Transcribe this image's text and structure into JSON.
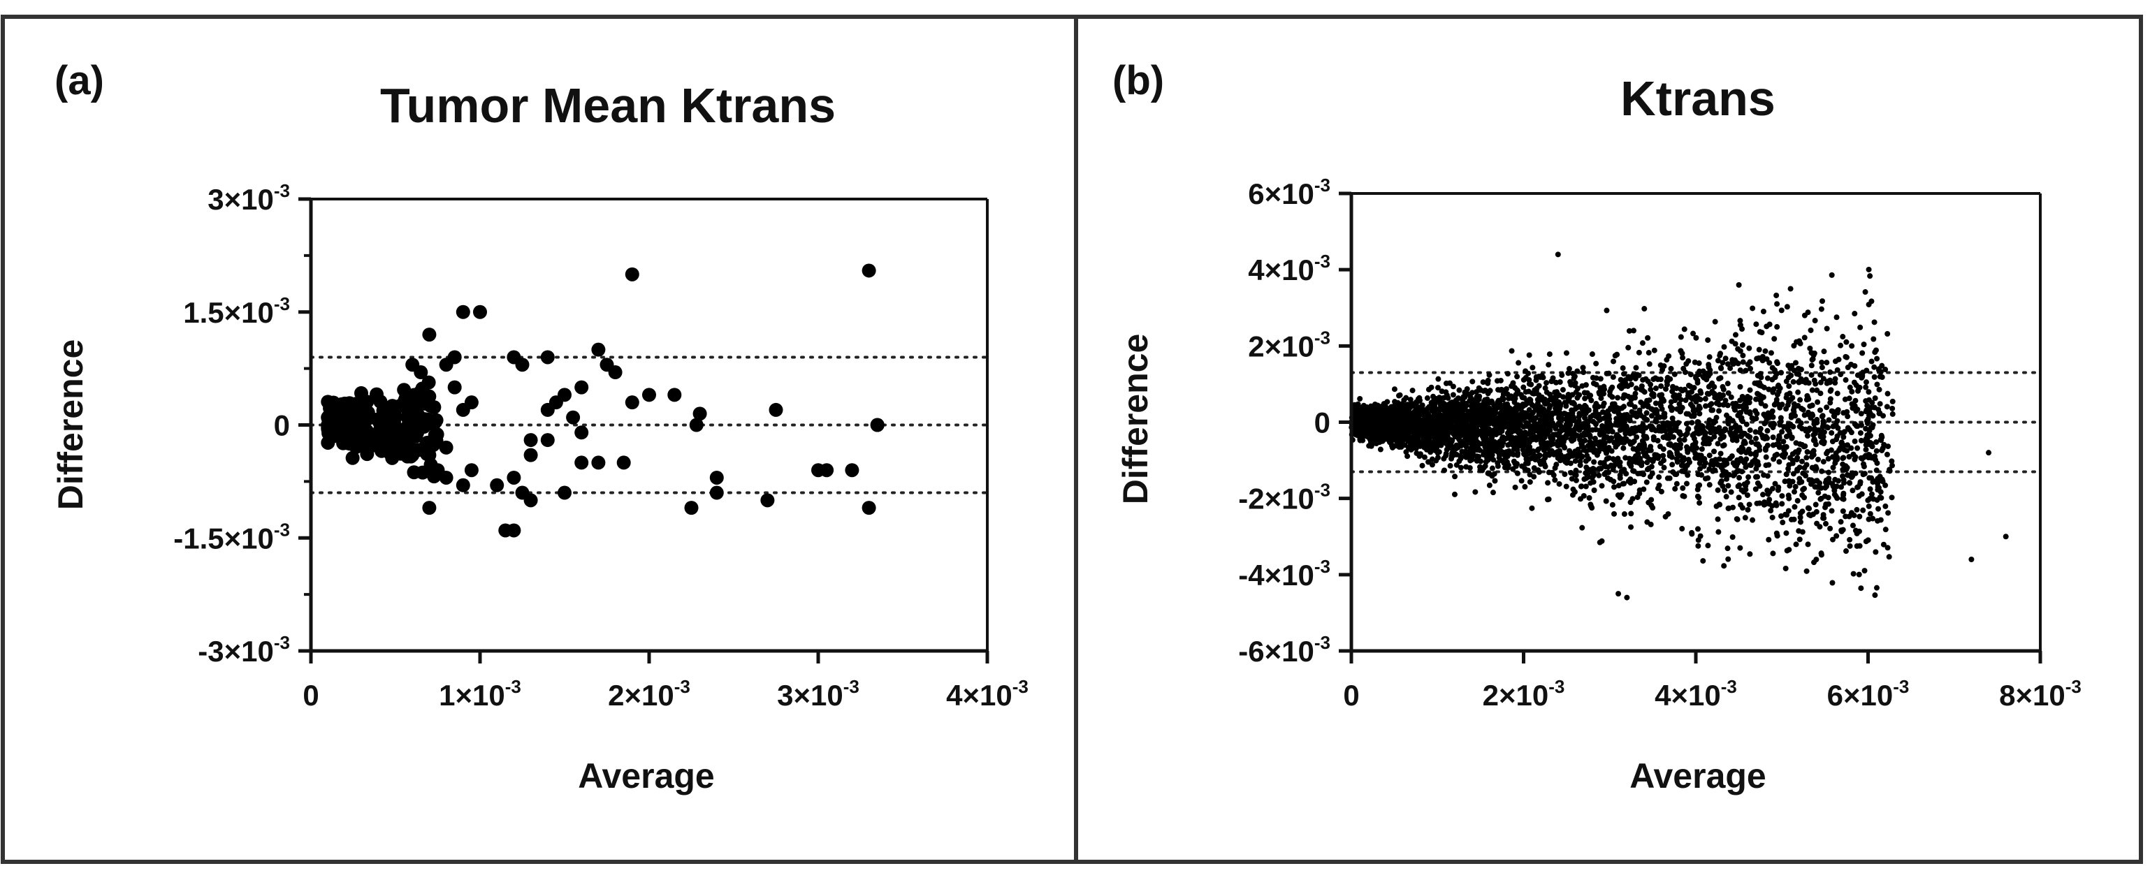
{
  "chart_data": [
    {
      "type": "scatter",
      "panel_label": "(a)",
      "title": "Tumor Mean Ktrans",
      "xlabel": "Average",
      "ylabel": "Difference",
      "xlim": [
        0,
        0.004
      ],
      "ylim": [
        -0.003,
        0.003
      ],
      "x_ticks": [
        {
          "value": 0,
          "base": "0",
          "exp": ""
        },
        {
          "value": 0.001,
          "base": "1×10",
          "exp": "-3"
        },
        {
          "value": 0.002,
          "base": "2×10",
          "exp": "-3"
        },
        {
          "value": 0.003,
          "base": "3×10",
          "exp": "-3"
        },
        {
          "value": 0.004,
          "base": "4×10",
          "exp": "-3"
        }
      ],
      "y_ticks": [
        {
          "value": 0.003,
          "base": "3×10",
          "exp": "-3"
        },
        {
          "value": 0.0015,
          "base": "1.5×10",
          "exp": "-3"
        },
        {
          "value": 0,
          "base": "0",
          "exp": ""
        },
        {
          "value": -0.0015,
          "base": "-1.5×10",
          "exp": "-3"
        },
        {
          "value": -0.003,
          "base": "-3×10",
          "exp": "-3"
        }
      ],
      "y_minor_ticks": [
        0.00225,
        0.00075,
        -0.00075,
        -0.00225
      ],
      "reference_lines": [
        0.0009,
        0,
        -0.0009
      ],
      "grid": false,
      "marker": "filled-circle-large",
      "points_x": [
        0.0033,
        0.00335,
        0.0019,
        0.00275,
        0.0023,
        0.0024,
        0.0024,
        0.0027,
        0.003,
        0.00305,
        0.0032,
        0.0033,
        0.00335,
        0.0017,
        0.00175,
        0.0018,
        0.00185,
        0.0016,
        0.0015,
        0.00145,
        0.0014,
        0.0013,
        0.0013,
        0.0012,
        0.00125,
        0.0014,
        0.00155,
        0.0016,
        0.0017,
        0.0019,
        0.002,
        0.00215,
        0.00225,
        0.00228,
        0.0013,
        0.0012,
        0.00115,
        0.0011,
        0.0012,
        0.00125,
        0.0014,
        0.0015,
        0.0016,
        0.0009,
        0.001,
        0.00095,
        0.0009,
        0.0008,
        0.00075,
        0.0007,
        0.0007,
        0.0006,
        0.00065,
        0.0008,
        0.00085,
        0.00085,
        0.0009,
        0.00095,
        0.0008,
        0.0007,
        0.0007,
        0.0006,
        0.0005,
        0.00045,
        0.0004,
        0.00035,
        0.0003,
        0.00025,
        0.0002,
        0.00015,
        0.0001,
        0.00012,
        0.0001
      ],
      "points_y": [
        0.00205,
        0.0,
        0.002,
        0.0002,
        0.00015,
        -0.0007,
        -0.0009,
        -0.001,
        -0.0006,
        -0.0006,
        -0.0006,
        -0.0011,
        0.0,
        0.001,
        0.0008,
        0.0007,
        -0.0005,
        0.0005,
        0.0004,
        0.0003,
        0.0002,
        -0.0002,
        -0.0004,
        0.0009,
        0.0008,
        0.0009,
        0.0001,
        -0.0001,
        -0.0005,
        0.0003,
        0.0004,
        0.0004,
        -0.0011,
        0.0,
        -0.001,
        -0.0014,
        -0.0014,
        -0.0008,
        -0.0007,
        -0.0009,
        -0.0002,
        -0.0009,
        -0.0005,
        0.0015,
        0.0015,
        -0.0006,
        -0.0008,
        -0.0007,
        -0.0006,
        -0.0011,
        0.0012,
        0.0008,
        0.0007,
        0.0008,
        0.0009,
        0.0005,
        0.0002,
        0.0003,
        -0.0003,
        -0.0004,
        -0.0003,
        -0.0004,
        -0.0002,
        -0.0003,
        -0.0001,
        -0.0002,
        0.0003,
        0.0001,
        0.0,
        0.0002,
        0.0,
        -0.0001,
        0.0001
      ]
    },
    {
      "type": "scatter",
      "panel_label": "(b)",
      "title": "Ktrans",
      "xlabel": "Average",
      "ylabel": "Difference",
      "xlim": [
        0,
        0.008
      ],
      "ylim": [
        -0.006,
        0.006
      ],
      "x_ticks": [
        {
          "value": 0,
          "base": "0",
          "exp": ""
        },
        {
          "value": 0.002,
          "base": "2×10",
          "exp": "-3"
        },
        {
          "value": 0.004,
          "base": "4×10",
          "exp": "-3"
        },
        {
          "value": 0.006,
          "base": "6×10",
          "exp": "-3"
        },
        {
          "value": 0.008,
          "base": "8×10",
          "exp": "-3"
        }
      ],
      "y_ticks": [
        {
          "value": 0.006,
          "base": "6×10",
          "exp": "-3"
        },
        {
          "value": 0.004,
          "base": "4×10",
          "exp": "-3"
        },
        {
          "value": 0.002,
          "base": "2×10",
          "exp": "-3"
        },
        {
          "value": 0,
          "base": "0",
          "exp": ""
        },
        {
          "value": -0.002,
          "base": "-2×10",
          "exp": "-3"
        },
        {
          "value": -0.004,
          "base": "-4×10",
          "exp": "-3"
        },
        {
          "value": -0.006,
          "base": "-6×10",
          "exp": "-3"
        }
      ],
      "y_minor_ticks": [],
      "reference_lines": [
        0.0013,
        0,
        -0.0013
      ],
      "grid": false,
      "marker": "filled-circle-small",
      "n_points_approx": 5000,
      "highlighted_points": [
        {
          "x": 0.0024,
          "y": 0.0044
        },
        {
          "x": 0.0031,
          "y": -0.0045
        },
        {
          "x": 0.0032,
          "y": -0.0046
        },
        {
          "x": 0.0045,
          "y": 0.0036
        },
        {
          "x": 0.0051,
          "y": 0.0035
        },
        {
          "x": 0.0072,
          "y": -0.0036
        },
        {
          "x": 0.0076,
          "y": -0.003
        },
        {
          "x": 0.0074,
          "y": -0.0008
        }
      ]
    }
  ]
}
